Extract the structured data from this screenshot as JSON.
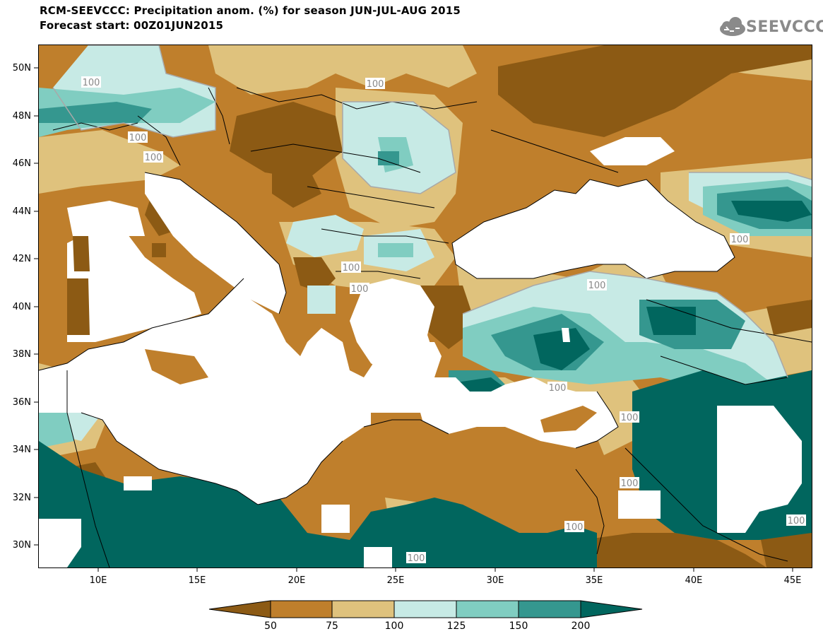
{
  "header": {
    "title_line1": "RCM-SEEVCCC: Precipitation anom. (%) for season JUN-JUL-AUG 2015",
    "title_line2": "Forecast start: 00Z01JUN2015",
    "logo_text": "SEEVCCC"
  },
  "map": {
    "lat_labels": [
      "50N",
      "48N",
      "46N",
      "44N",
      "42N",
      "40N",
      "38N",
      "36N",
      "34N",
      "32N",
      "30N"
    ],
    "lon_labels": [
      "10E",
      "15E",
      "20E",
      "25E",
      "30E",
      "35E",
      "40E",
      "45E"
    ],
    "contour_label": "100"
  },
  "legend": {
    "ticks": [
      "50",
      "75",
      "100",
      "125",
      "150",
      "200"
    ],
    "colors": {
      "lt50": "#8c5a14",
      "50_75": "#bf7f2c",
      "75_100": "#dfc27d",
      "100_125": "#c7eae5",
      "125_150": "#80cdc1",
      "150_200": "#35978f",
      "gt200": "#01665e"
    }
  },
  "colors": {
    "sea": "#ffffff",
    "contour_line": "#a8a8a8",
    "border": "#000000"
  }
}
